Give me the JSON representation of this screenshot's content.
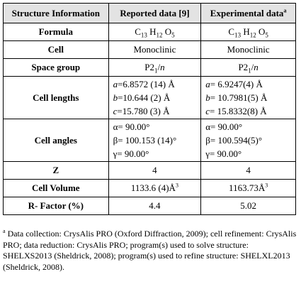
{
  "table": {
    "headers": [
      "Structure Information",
      "Reported data [9]",
      "Experimental data",
      "a"
    ],
    "formula": {
      "label": "Formula",
      "reported": [
        "C",
        "13",
        " H",
        "12",
        " O",
        "5"
      ],
      "experimental": [
        "C",
        "13",
        " H",
        "12",
        " O",
        "5"
      ]
    },
    "cell": {
      "label": "Cell",
      "reported": "Monoclinic",
      "experimental": "Monoclinic"
    },
    "space_group": {
      "label": "Space group",
      "reported": [
        "P2",
        "1",
        "/",
        "n"
      ],
      "experimental": [
        "P2",
        "1",
        "/",
        "n"
      ]
    },
    "cell_lengths": {
      "label": "Cell lengths",
      "reported": [
        [
          "a",
          "=6.8572 (14) Å"
        ],
        [
          "b",
          "=10.644 (2) Å"
        ],
        [
          "c",
          "=15.780 (3) Å"
        ]
      ],
      "experimental": [
        [
          "a",
          "= 6.9247(4) Å"
        ],
        [
          "b",
          "= 10.7981(5) Å"
        ],
        [
          "c",
          "= 15.8332(8) Å"
        ]
      ]
    },
    "cell_angles": {
      "label": "Cell angles",
      "reported": [
        "α= 90.00°",
        "β= 100.153 (14)°",
        "γ= 90.00°"
      ],
      "experimental": [
        "α= 90.00°",
        "β= 100.594(5)°",
        "γ= 90.00°"
      ]
    },
    "z": {
      "label": "Z",
      "reported": "4",
      "experimental": "4"
    },
    "cell_volume": {
      "label": "Cell Volume",
      "reported": [
        "1133.6 (4)Å",
        "3"
      ],
      "experimental": [
        "1163.73Å",
        "3"
      ]
    },
    "r_factor": {
      "label": "R- Factor (%)",
      "reported": "4.4",
      "experimental": "5.02"
    }
  },
  "footnote": {
    "marker": "a",
    "text": " Data collection: CrysAlis PRO (Oxford Diffraction, 2009); cell refinement: CrysAlis PRO; data reduction: CrysAlis PRO; program(s) used to solve structure: SHELXS2013 (Sheldrick, 2008); program(s) used to refine structure: SHELXL2013 (Sheldrick, 2008)."
  }
}
